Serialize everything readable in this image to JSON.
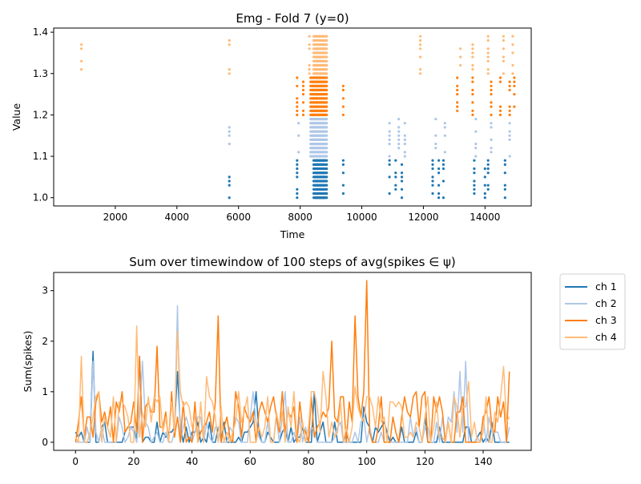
{
  "colors": {
    "ch1": "#1f77b4",
    "ch2": "#aec7e8",
    "ch3": "#ff7f0e",
    "ch4": "#ffbb78"
  },
  "chart_data": [
    {
      "type": "scatter",
      "title": "Emg - Fold 7 (y=0)",
      "xlabel": "Time",
      "ylabel": "Value",
      "xlim": [
        0,
        15500
      ],
      "ylim": [
        0.98,
        1.41
      ],
      "xticks": [
        2000,
        4000,
        6000,
        8000,
        10000,
        12000,
        14000
      ],
      "yticks": [
        1.0,
        1.1,
        1.2,
        1.3,
        1.4
      ],
      "grid": false,
      "series": [
        {
          "channel": 1,
          "y_range": [
            1.0,
            1.09
          ],
          "times": [
            5700,
            7900,
            8500,
            8600,
            8700,
            8800,
            9400,
            10900,
            11100,
            11300,
            12300,
            12500,
            12650,
            13650,
            14000,
            14100,
            14650
          ]
        },
        {
          "channel": 2,
          "y_range": [
            1.1,
            1.19
          ],
          "times": [
            5700,
            7950,
            8400,
            8500,
            8600,
            8700,
            8800,
            10900,
            11200,
            11400,
            12400,
            12700,
            13700,
            14200,
            14800
          ]
        },
        {
          "channel": 3,
          "y_range": [
            1.2,
            1.29
          ],
          "times": [
            7900,
            8100,
            8400,
            8500,
            8600,
            8700,
            8800,
            9400,
            13100,
            13600,
            14200,
            14500,
            14800,
            14950
          ]
        },
        {
          "channel": 4,
          "y_range": [
            1.3,
            1.39
          ],
          "times": [
            900,
            5700,
            8300,
            8500,
            8600,
            8700,
            8800,
            11900,
            13200,
            13600,
            14100,
            14600,
            14900
          ]
        }
      ]
    },
    {
      "type": "line",
      "title": "Sum over timewindow of 100 steps of avg(spikes ∈ ψ)",
      "xlabel": "",
      "ylabel": "Sum(spikes)",
      "xlim": [
        -7.5,
        156.5
      ],
      "ylim": [
        -0.16,
        3.36
      ],
      "xticks": [
        0,
        20,
        40,
        60,
        80,
        100,
        120,
        140
      ],
      "yticks": [
        0,
        1,
        2,
        3
      ],
      "grid": false,
      "legend": "outside-upper-right",
      "series": [
        {
          "name": "ch 1",
          "peaks": {
            "6": 1.8,
            "22": 1.7,
            "35": 1.4,
            "62": 1.0,
            "82": 1.0,
            "99": 0.7,
            "120": 0.5
          },
          "density": 0.5,
          "base": 0.4
        },
        {
          "name": "ch 2",
          "peaks": {
            "6": 1.6,
            "23": 1.6,
            "35": 2.7,
            "61": 1.0,
            "72": 1.0,
            "130": 1.0,
            "132": 1.4,
            "134": 1.6
          },
          "density": 0.45,
          "base": 0.55
        },
        {
          "name": "ch 3",
          "peaks": {
            "22": 1.7,
            "28": 1.9,
            "49": 2.5,
            "88": 2.0,
            "96": 2.5,
            "100": 3.2,
            "149": 1.4
          },
          "density": 0.85,
          "base": 1.0
        },
        {
          "name": "ch 4",
          "peaks": {
            "2": 1.7,
            "21": 2.3,
            "35": 2.2,
            "45": 1.3,
            "85": 1.4,
            "96": 1.1,
            "135": 1.2,
            "147": 1.5
          },
          "density": 0.85,
          "base": 1.0
        }
      ]
    }
  ]
}
